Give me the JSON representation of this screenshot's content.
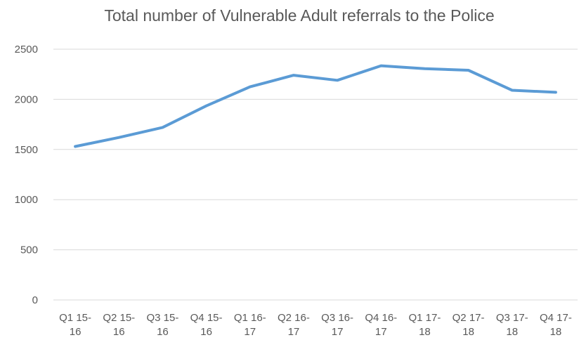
{
  "chart_data": {
    "type": "line",
    "title": "Total number of Vulnerable Adult referrals to the Police",
    "categories": [
      "Q1 15-16",
      "Q2 15-16",
      "Q3 15-16",
      "Q4 15-16",
      "Q1 16-17",
      "Q2 16-17",
      "Q3 16-17",
      "Q4 16-17",
      "Q1 17-18",
      "Q2 17-18",
      "Q3 17-18",
      "Q4 17-18"
    ],
    "values": [
      1530,
      1620,
      1720,
      1935,
      2125,
      2240,
      2190,
      2335,
      2305,
      2290,
      2090,
      2070
    ],
    "color": "#5b9bd5",
    "ylim": [
      0,
      2500
    ],
    "yticks": [
      0,
      500,
      1000,
      1500,
      2000,
      2500
    ],
    "grid": true
  }
}
